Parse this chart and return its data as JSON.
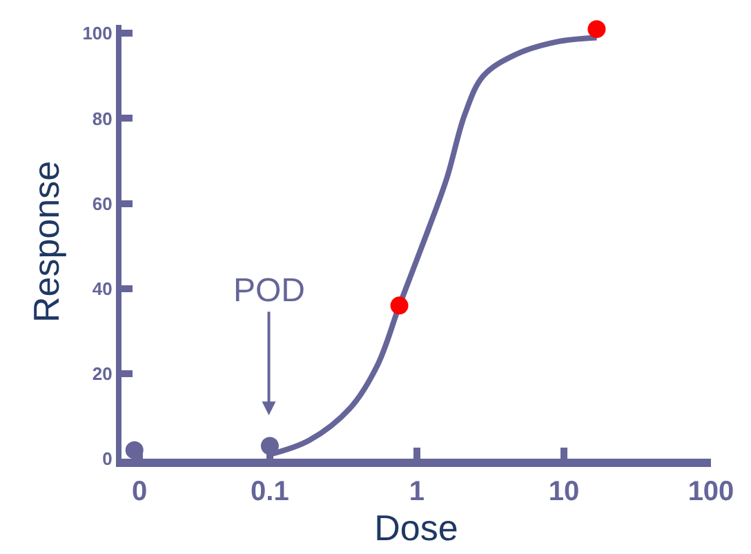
{
  "chart_data": {
    "type": "line",
    "xlabel": "Dose",
    "ylabel": "Response",
    "log": "x",
    "xlim": [
      0.0098,
      100
    ],
    "ylim": [
      0,
      102
    ],
    "xticks": [
      {
        "value": 0.013,
        "label": "0"
      },
      0.1,
      1,
      10,
      100
    ],
    "yticks": [
      0,
      20,
      40,
      60,
      80,
      100
    ],
    "series": [
      {
        "color": "#65659a",
        "marker": "none",
        "line_style": "solid",
        "x": [
          0.1,
          0.185,
          0.354,
          0.54,
          0.76,
          1.2,
          1.6,
          2.12,
          2.83,
          4.68,
          8.9,
          16.7
        ],
        "values": [
          1,
          4.3,
          12,
          22,
          36,
          54,
          66,
          81,
          90,
          95,
          98,
          99
        ]
      },
      {
        "type": "scatter",
        "color": "#65659a",
        "marker": "circle",
        "x": [
          0.012,
          0.1
        ],
        "values": [
          2,
          3
        ]
      },
      {
        "type": "scatter",
        "color": "#ff0000",
        "marker": "circle",
        "x": [
          0.76,
          16.7
        ],
        "values": [
          36,
          101
        ]
      }
    ],
    "annotations": [
      "POD"
    ]
  }
}
